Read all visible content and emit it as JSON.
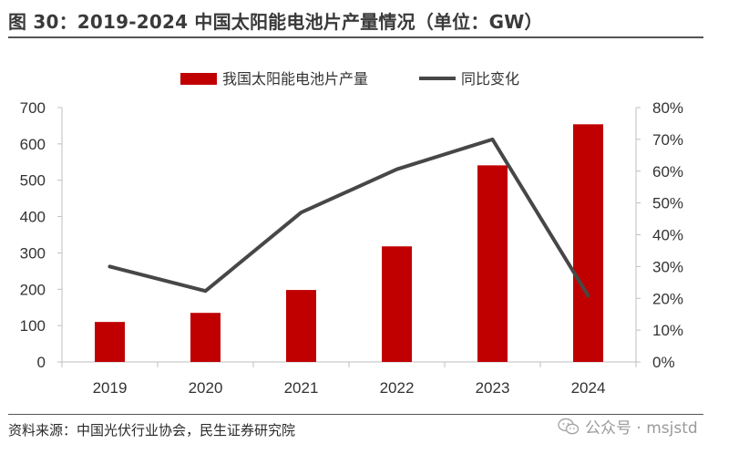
{
  "figure": {
    "title": "图 30：2019-2024 中国太阳能电池片产量情况（单位：GW）",
    "source": "资料来源：中国光伏行业协会，民生证券研究院"
  },
  "watermark": {
    "text": "公众号 · msjstd",
    "icon": "wechat-icon"
  },
  "colors": {
    "bar": "#C00000",
    "line": "#474747",
    "axis": "#bfbfbf"
  },
  "chart_data": {
    "type": "bar",
    "categories": [
      "2019",
      "2020",
      "2021",
      "2022",
      "2023",
      "2024"
    ],
    "series": [
      {
        "name": "我国太阳能电池片产量",
        "type": "bar",
        "axis": "left",
        "values": [
          110,
          135,
          198,
          318,
          541,
          654
        ]
      },
      {
        "name": "同比变化",
        "type": "line",
        "axis": "right",
        "values": [
          0.3,
          0.223,
          0.47,
          0.606,
          0.7,
          0.208
        ]
      }
    ],
    "y_left": {
      "lim": [
        0,
        700
      ],
      "ticks": [
        0,
        100,
        200,
        300,
        400,
        500,
        600,
        700
      ]
    },
    "y_right": {
      "lim": [
        0,
        0.8
      ],
      "ticks": [
        0,
        0.1,
        0.2,
        0.3,
        0.4,
        0.5,
        0.6,
        0.7,
        0.8
      ],
      "tick_labels": [
        "0%",
        "10%",
        "20%",
        "30%",
        "40%",
        "50%",
        "60%",
        "70%",
        "80%"
      ]
    },
    "legend": "top-center",
    "grid": false
  }
}
